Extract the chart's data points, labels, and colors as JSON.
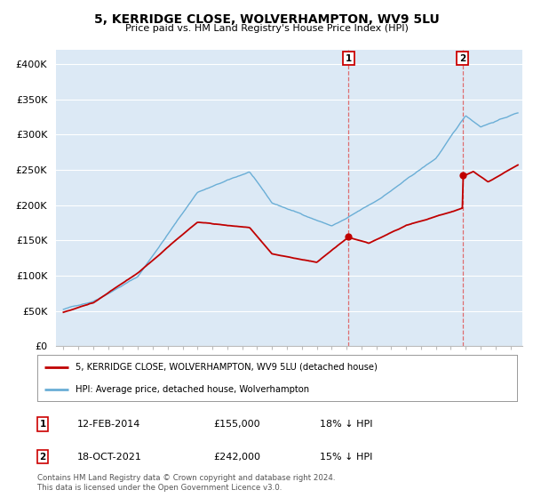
{
  "title": "5, KERRIDGE CLOSE, WOLVERHAMPTON, WV9 5LU",
  "subtitle": "Price paid vs. HM Land Registry's House Price Index (HPI)",
  "ylim": [
    0,
    420000
  ],
  "yticks": [
    0,
    50000,
    100000,
    150000,
    200000,
    250000,
    300000,
    350000,
    400000
  ],
  "ytick_labels": [
    "£0",
    "£50K",
    "£100K",
    "£150K",
    "£200K",
    "£250K",
    "£300K",
    "£350K",
    "£400K"
  ],
  "hpi_color": "#6aaed6",
  "price_color": "#c00000",
  "sale1_x": 2014.12,
  "sale1_price": 155000,
  "sale2_x": 2021.79,
  "sale2_price": 242000,
  "vline_color": "#e06060",
  "background_color": "#ffffff",
  "plot_bg_color": "#dce9f5",
  "grid_color": "#ffffff",
  "legend_label1": "5, KERRIDGE CLOSE, WOLVERHAMPTON, WV9 5LU (detached house)",
  "legend_label2": "HPI: Average price, detached house, Wolverhampton",
  "footnote": "Contains HM Land Registry data © Crown copyright and database right 2024.\nThis data is licensed under the Open Government Licence v3.0.",
  "table_rows": [
    {
      "num": "1",
      "date": "12-FEB-2014",
      "price": "£155,000",
      "change": "18% ↓ HPI"
    },
    {
      "num": "2",
      "date": "18-OCT-2021",
      "price": "£242,000",
      "change": "15% ↓ HPI"
    }
  ],
  "xlim": [
    1994.5,
    2025.8
  ],
  "xticks": [
    1995,
    1996,
    1997,
    1998,
    1999,
    2000,
    2001,
    2002,
    2003,
    2004,
    2005,
    2006,
    2007,
    2008,
    2009,
    2010,
    2011,
    2012,
    2013,
    2014,
    2015,
    2016,
    2017,
    2018,
    2019,
    2020,
    2021,
    2022,
    2023,
    2024,
    2025
  ]
}
